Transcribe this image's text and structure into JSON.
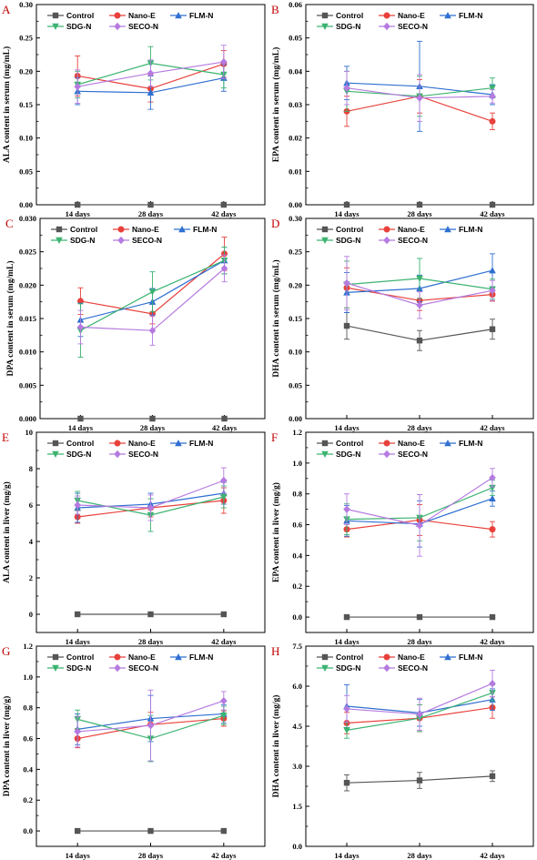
{
  "colors": {
    "Control": "#555555",
    "Nano-E": "#e8413b",
    "FLM-N": "#2f6fd1",
    "SDG-N": "#3cb371",
    "SECO-N": "#b57be0"
  },
  "series_order": [
    "Control",
    "Nano-E",
    "FLM-N",
    "SDG-N",
    "SECO-N"
  ],
  "chart_data": [
    {
      "id": "A",
      "letter": "A",
      "type": "line",
      "ylabel": "ALA content in serum (mg/mL)",
      "categories": [
        "14 days",
        "28 days",
        "42 days"
      ],
      "ylim": [
        0,
        0.3
      ],
      "yticks": [
        0.0,
        0.05,
        0.1,
        0.15,
        0.2,
        0.25,
        0.3
      ],
      "tick_decimals": 2,
      "series": [
        {
          "name": "Control",
          "values": [
            0.0,
            0.0,
            0.0
          ],
          "errors": [
            0,
            0,
            0
          ]
        },
        {
          "name": "Nano-E",
          "values": [
            0.193,
            0.174,
            0.211
          ],
          "errors": [
            0.03,
            0.02,
            0.02
          ]
        },
        {
          "name": "FLM-N",
          "values": [
            0.17,
            0.168,
            0.19
          ],
          "errors": [
            0.02,
            0.025,
            0.02
          ]
        },
        {
          "name": "SDG-N",
          "values": [
            0.18,
            0.212,
            0.195
          ],
          "errors": [
            0.02,
            0.025,
            0.02
          ]
        },
        {
          "name": "SECO-N",
          "values": [
            0.177,
            0.197,
            0.214
          ],
          "errors": [
            0.025,
            0.02,
            0.025
          ]
        }
      ]
    },
    {
      "id": "B",
      "letter": "B",
      "type": "line",
      "ylabel": "EPA content in serum (mg/mL)",
      "categories": [
        "14 days",
        "28 days",
        "42 days"
      ],
      "ylim": [
        0,
        0.06
      ],
      "yticks": [
        0.0,
        0.01,
        0.02,
        0.03,
        0.04,
        0.05,
        0.06
      ],
      "tick_decimals": 2,
      "series": [
        {
          "name": "Control",
          "values": [
            0.0,
            0.0,
            0.0
          ],
          "errors": [
            0,
            0,
            0
          ]
        },
        {
          "name": "Nano-E",
          "values": [
            0.028,
            0.0325,
            0.025
          ],
          "errors": [
            0.0045,
            0.005,
            0.0025
          ]
        },
        {
          "name": "FLM-N",
          "values": [
            0.0365,
            0.0355,
            0.033
          ],
          "errors": [
            0.005,
            0.0135,
            0.003
          ]
        },
        {
          "name": "SDG-N",
          "values": [
            0.034,
            0.0325,
            0.035
          ],
          "errors": [
            0.006,
            0.006,
            0.003
          ]
        },
        {
          "name": "SECO-N",
          "values": [
            0.035,
            0.032,
            0.0325
          ],
          "errors": [
            0.005,
            0.007,
            0.002
          ]
        }
      ]
    },
    {
      "id": "C",
      "letter": "C",
      "type": "line",
      "ylabel": "DPA content in serum (mg/mL)",
      "categories": [
        "14 days",
        "28 days",
        "42 days"
      ],
      "ylim": [
        0,
        0.03
      ],
      "yticks": [
        0.0,
        0.005,
        0.01,
        0.015,
        0.02,
        0.025,
        0.03
      ],
      "tick_decimals": 3,
      "series": [
        {
          "name": "Control",
          "values": [
            0.0,
            0.0,
            0.0
          ],
          "errors": [
            0,
            0,
            0
          ]
        },
        {
          "name": "Nano-E",
          "values": [
            0.0176,
            0.0157,
            0.0247
          ],
          "errors": [
            0.002,
            0.0015,
            0.0025
          ]
        },
        {
          "name": "FLM-N",
          "values": [
            0.0148,
            0.0175,
            0.0237
          ],
          "errors": [
            0.0025,
            0.002,
            0.002
          ]
        },
        {
          "name": "SDG-N",
          "values": [
            0.0132,
            0.019,
            0.0237
          ],
          "errors": [
            0.004,
            0.003,
            0.002
          ]
        },
        {
          "name": "SECO-N",
          "values": [
            0.0137,
            0.0132,
            0.0225
          ],
          "errors": [
            0.0025,
            0.0022,
            0.002
          ]
        }
      ]
    },
    {
      "id": "D",
      "letter": "D",
      "type": "line",
      "ylabel": "DHA content in serum (mg/mL)",
      "categories": [
        "14 days",
        "28 days",
        "42 days"
      ],
      "ylim": [
        0,
        0.3
      ],
      "yticks": [
        0.0,
        0.05,
        0.1,
        0.15,
        0.2,
        0.25,
        0.3
      ],
      "tick_decimals": 2,
      "series": [
        {
          "name": "Control",
          "values": [
            0.139,
            0.117,
            0.134
          ],
          "errors": [
            0.02,
            0.015,
            0.015
          ]
        },
        {
          "name": "Nano-E",
          "values": [
            0.196,
            0.177,
            0.186
          ],
          "errors": [
            0.03,
            0.015,
            0.01
          ]
        },
        {
          "name": "FLM-N",
          "values": [
            0.189,
            0.195,
            0.222
          ],
          "errors": [
            0.03,
            0.02,
            0.025
          ]
        },
        {
          "name": "SDG-N",
          "values": [
            0.201,
            0.21,
            0.194
          ],
          "errors": [
            0.035,
            0.03,
            0.015
          ]
        },
        {
          "name": "SECO-N",
          "values": [
            0.203,
            0.17,
            0.192
          ],
          "errors": [
            0.04,
            0.02,
            0.015
          ]
        }
      ]
    },
    {
      "id": "E",
      "letter": "E",
      "type": "line",
      "ylabel": "ALA content in liver (mg/g)",
      "categories": [
        "14 days",
        "28 days",
        "42 days"
      ],
      "ylim": [
        -1,
        10
      ],
      "yticks": [
        0,
        2,
        4,
        6,
        8,
        10
      ],
      "tick_decimals": 0,
      "series": [
        {
          "name": "Control",
          "values": [
            0.0,
            0.0,
            0.0
          ],
          "errors": [
            0,
            0,
            0
          ]
        },
        {
          "name": "Nano-E",
          "values": [
            5.35,
            5.85,
            6.25
          ],
          "errors": [
            0.35,
            0.5,
            0.7
          ]
        },
        {
          "name": "FLM-N",
          "values": [
            5.85,
            6.05,
            6.65
          ],
          "errors": [
            0.8,
            0.6,
            0.6
          ]
        },
        {
          "name": "SDG-N",
          "values": [
            6.25,
            5.45,
            6.45
          ],
          "errors": [
            0.5,
            0.9,
            0.6
          ]
        },
        {
          "name": "SECO-N",
          "values": [
            6.0,
            5.85,
            7.35
          ],
          "errors": [
            0.5,
            0.7,
            0.7
          ]
        }
      ]
    },
    {
      "id": "F",
      "letter": "F",
      "type": "line",
      "ylabel": "EPA content in liver (mg/g)",
      "categories": [
        "14 days",
        "28 days",
        "42 days"
      ],
      "ylim": [
        -0.1,
        1.2
      ],
      "yticks": [
        0.0,
        0.2,
        0.4,
        0.6,
        0.8,
        1.0,
        1.2
      ],
      "tick_decimals": 1,
      "series": [
        {
          "name": "Control",
          "values": [
            0.0,
            0.0,
            0.0
          ],
          "errors": [
            0,
            0,
            0
          ]
        },
        {
          "name": "Nano-E",
          "values": [
            0.57,
            0.63,
            0.57
          ],
          "errors": [
            0.05,
            0.1,
            0.05
          ]
        },
        {
          "name": "FLM-N",
          "values": [
            0.625,
            0.605,
            0.77
          ],
          "errors": [
            0.1,
            0.15,
            0.05
          ]
        },
        {
          "name": "SDG-N",
          "values": [
            0.635,
            0.645,
            0.84
          ],
          "errors": [
            0.1,
            0.15,
            0.05
          ]
        },
        {
          "name": "SECO-N",
          "values": [
            0.7,
            0.595,
            0.905
          ],
          "errors": [
            0.1,
            0.2,
            0.06
          ]
        }
      ]
    },
    {
      "id": "G",
      "letter": "G",
      "type": "line",
      "ylabel": "DPA content in liver (mg/g)",
      "categories": [
        "14 days",
        "28 days",
        "42 days"
      ],
      "ylim": [
        -0.1,
        1.2
      ],
      "yticks": [
        0.0,
        0.2,
        0.4,
        0.6,
        0.8,
        1.0,
        1.2
      ],
      "tick_decimals": 1,
      "series": [
        {
          "name": "Control",
          "values": [
            0.0,
            0.0,
            0.0
          ],
          "errors": [
            0,
            0,
            0
          ]
        },
        {
          "name": "Nano-E",
          "values": [
            0.6,
            0.69,
            0.73
          ],
          "errors": [
            0.06,
            0.08,
            0.05
          ]
        },
        {
          "name": "FLM-N",
          "values": [
            0.66,
            0.73,
            0.76
          ],
          "errors": [
            0.1,
            0.15,
            0.06
          ]
        },
        {
          "name": "SDG-N",
          "values": [
            0.725,
            0.6,
            0.75
          ],
          "errors": [
            0.06,
            0.15,
            0.06
          ]
        },
        {
          "name": "SECO-N",
          "values": [
            0.645,
            0.685,
            0.845
          ],
          "errors": [
            0.1,
            0.23,
            0.06
          ]
        }
      ]
    },
    {
      "id": "H",
      "letter": "H",
      "type": "line",
      "ylabel": "DHA content in liver (mg/g)",
      "categories": [
        "14 days",
        "28 days",
        "42 days"
      ],
      "ylim": [
        0,
        7.5
      ],
      "yticks": [
        0.0,
        1.5,
        3.0,
        4.5,
        6.0,
        7.5
      ],
      "tick_decimals": 1,
      "series": [
        {
          "name": "Control",
          "values": [
            2.38,
            2.47,
            2.63
          ],
          "errors": [
            0.3,
            0.3,
            0.2
          ]
        },
        {
          "name": "Nano-E",
          "values": [
            4.62,
            4.8,
            5.2
          ],
          "errors": [
            0.4,
            0.5,
            0.4
          ]
        },
        {
          "name": "FLM-N",
          "values": [
            5.25,
            5.0,
            5.5
          ],
          "errors": [
            0.8,
            0.5,
            0.4
          ]
        },
        {
          "name": "SDG-N",
          "values": [
            4.35,
            4.8,
            5.75
          ],
          "errors": [
            0.3,
            0.5,
            0.3
          ]
        },
        {
          "name": "SECO-N",
          "values": [
            5.15,
            4.95,
            6.1
          ],
          "errors": [
            0.5,
            0.6,
            0.5
          ]
        }
      ]
    }
  ]
}
